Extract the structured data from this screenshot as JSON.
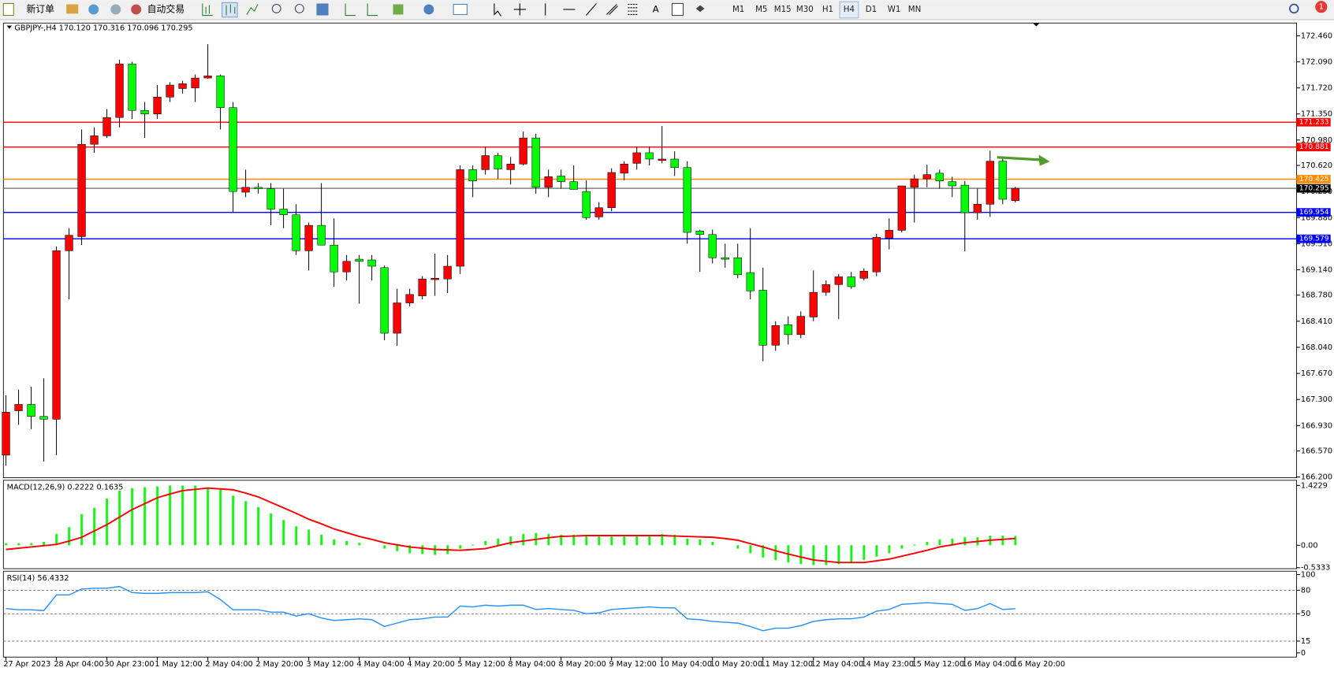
{
  "toolbar": {
    "new_order": "新订单",
    "auto_trading": "自动交易",
    "text_tool": "A",
    "timeframes": [
      "M1",
      "M5",
      "M15",
      "M30",
      "H1",
      "H4",
      "D1",
      "W1",
      "MN"
    ],
    "notifications": "1"
  },
  "chart_data": [
    {
      "type": "candlestick",
      "title": "GBPJPY-,H4  170.120 170.316 170.096 170.295",
      "categories": [
        "27 Apr 2023",
        null,
        null,
        null,
        "28 Apr 04:00",
        null,
        null,
        null,
        "30 Apr 23:00",
        null,
        null,
        null,
        "1 May 12:00",
        null,
        null,
        null,
        "2 May 04:00",
        null,
        null,
        null,
        "2 May 20:00",
        null,
        null,
        null,
        "3 May 12:00",
        null,
        null,
        null,
        "4 May 04:00",
        null,
        null,
        null,
        "4 May 20:00",
        null,
        null,
        null,
        "5 May 12:00",
        null,
        null,
        null,
        "8 May 04:00",
        null,
        null,
        null,
        "8 May 20:00",
        null,
        null,
        null,
        "9 May 12:00",
        null,
        null,
        null,
        "10 May 04:00",
        null,
        null,
        null,
        "10 May 20:00",
        null,
        null,
        null,
        "11 May 12:00",
        null,
        null,
        null,
        "12 May 04:00",
        null,
        null,
        null,
        "14 May 23:00",
        null,
        null,
        null,
        "15 May 12:00",
        null,
        null,
        null,
        "16 May 04:00",
        null,
        null,
        null,
        "16 May 20:00"
      ],
      "open": [
        166.51,
        167.14,
        167.23,
        167.06,
        167.02,
        169.41,
        169.61,
        170.92,
        171.04,
        171.3,
        172.06,
        171.4,
        171.35,
        171.59,
        171.71,
        171.72,
        171.86,
        171.89,
        171.44,
        170.24,
        170.31,
        170.29,
        170.0,
        169.92,
        169.41,
        169.77,
        169.49,
        169.11,
        169.29,
        169.28,
        169.17,
        168.24,
        168.67,
        168.77,
        169.0,
        169.01,
        169.19,
        170.56,
        170.56,
        170.76,
        170.56,
        170.64,
        171.01,
        170.31,
        170.47,
        170.39,
        170.25,
        169.89,
        170.02,
        170.51,
        170.65,
        170.8,
        170.69,
        170.71,
        170.59,
        169.69,
        169.64,
        169.31,
        169.31,
        169.1,
        168.85,
        168.07,
        168.36,
        168.22,
        168.47,
        168.82,
        168.93,
        169.04,
        169.02,
        169.11,
        169.59,
        169.7,
        170.31,
        170.43,
        170.51,
        170.39,
        170.34,
        169.95,
        170.07,
        170.68,
        170.12
      ],
      "high": [
        167.36,
        167.44,
        167.48,
        167.6,
        169.47,
        169.73,
        171.13,
        171.16,
        171.42,
        172.12,
        172.09,
        171.52,
        171.76,
        171.8,
        171.82,
        171.91,
        172.34,
        171.91,
        171.52,
        170.56,
        170.37,
        170.37,
        170.29,
        170.07,
        169.81,
        170.37,
        169.87,
        169.35,
        169.35,
        169.35,
        169.2,
        168.87,
        168.87,
        169.05,
        169.37,
        169.35,
        170.62,
        170.62,
        170.88,
        170.8,
        170.74,
        171.1,
        171.07,
        170.56,
        170.56,
        170.62,
        170.41,
        170.1,
        170.58,
        170.68,
        170.88,
        170.89,
        171.18,
        170.82,
        170.68,
        169.71,
        169.71,
        169.51,
        169.51,
        169.73,
        169.17,
        168.41,
        168.48,
        168.55,
        169.13,
        168.99,
        169.08,
        169.11,
        169.16,
        169.65,
        169.87,
        170.33,
        170.49,
        170.63,
        170.56,
        170.46,
        170.4,
        170.29,
        170.83,
        170.74,
        170.316
      ],
      "low": [
        166.36,
        166.94,
        166.88,
        166.42,
        166.51,
        168.72,
        169.49,
        170.8,
        171.01,
        171.16,
        171.28,
        171.01,
        171.28,
        171.52,
        171.64,
        171.52,
        171.85,
        171.13,
        169.95,
        170.17,
        170.22,
        169.77,
        169.73,
        169.35,
        169.13,
        169.49,
        168.9,
        168.99,
        168.66,
        168.99,
        168.14,
        168.06,
        168.62,
        168.72,
        168.77,
        168.81,
        169.08,
        170.17,
        170.49,
        170.43,
        170.35,
        170.62,
        170.22,
        170.17,
        170.29,
        170.28,
        169.85,
        169.85,
        169.97,
        170.41,
        170.56,
        170.62,
        170.65,
        170.47,
        169.51,
        169.11,
        169.23,
        169.17,
        169.02,
        168.72,
        167.84,
        167.99,
        168.08,
        168.17,
        168.41,
        168.77,
        168.44,
        168.87,
        168.99,
        169.05,
        169.43,
        169.67,
        169.81,
        170.31,
        170.29,
        170.17,
        169.4,
        169.85,
        169.89,
        170.07,
        170.096
      ],
      "close": [
        167.12,
        167.23,
        167.06,
        167.02,
        169.41,
        169.63,
        170.92,
        171.04,
        171.3,
        172.06,
        171.4,
        171.35,
        171.59,
        171.76,
        171.78,
        171.86,
        171.89,
        171.44,
        170.25,
        170.31,
        170.29,
        170.0,
        169.92,
        169.41,
        169.77,
        169.49,
        169.11,
        169.26,
        169.26,
        169.19,
        168.24,
        168.67,
        168.79,
        169.01,
        169.02,
        169.19,
        170.56,
        170.4,
        170.76,
        170.57,
        170.64,
        171.01,
        170.31,
        170.46,
        170.39,
        170.28,
        169.88,
        170.02,
        170.52,
        170.64,
        170.8,
        170.71,
        170.71,
        170.59,
        169.67,
        169.64,
        169.31,
        169.29,
        169.07,
        168.84,
        168.07,
        168.35,
        168.22,
        168.48,
        168.82,
        168.93,
        169.04,
        168.9,
        169.12,
        169.6,
        169.7,
        170.33,
        170.43,
        170.49,
        170.4,
        170.33,
        169.95,
        170.07,
        170.68,
        170.14,
        170.295
      ],
      "up_color": "#ff0000",
      "down_color": "#00ff00",
      "ylim": [
        166.19,
        172.64
      ],
      "yticks": [
        {
          "value": 172.46,
          "label": "172.460"
        },
        {
          "value": 172.09,
          "label": "172.090"
        },
        {
          "value": 171.72,
          "label": "171.720"
        },
        {
          "value": 171.35,
          "label": "171.350"
        },
        {
          "value": 170.98,
          "label": "170.980"
        },
        {
          "value": 170.62,
          "label": "170.620"
        },
        {
          "value": 170.25,
          "label": "170.250"
        },
        {
          "value": 169.88,
          "label": "169.880"
        },
        {
          "value": 169.51,
          "label": "169.510"
        },
        {
          "value": 169.14,
          "label": "169.140"
        },
        {
          "value": 168.78,
          "label": "168.780"
        },
        {
          "value": 168.41,
          "label": "168.410"
        },
        {
          "value": 168.04,
          "label": "168.040"
        },
        {
          "value": 167.67,
          "label": "167.670"
        },
        {
          "value": 167.3,
          "label": "167.300"
        },
        {
          "value": 166.93,
          "label": "166.930"
        },
        {
          "value": 166.57,
          "label": "166.570"
        },
        {
          "value": 166.2,
          "label": "166.200"
        }
      ],
      "levels": [
        {
          "value": 171.233,
          "color": "#ff0000"
        },
        {
          "value": 170.881,
          "color": "#ff0000"
        },
        {
          "value": 170.425,
          "color": "#ff8c00"
        },
        {
          "value": 170.295,
          "color": "#808080"
        },
        {
          "value": 169.954,
          "color": "#0000ff"
        },
        {
          "value": 169.579,
          "color": "#0000ff"
        }
      ],
      "grid": false
    },
    {
      "type": "macd",
      "title": "MACD(12,26,9) 0.2222 0.1635",
      "values": [
        0.05,
        0.05,
        0.05,
        0.08,
        0.27,
        0.43,
        0.74,
        0.89,
        1.11,
        1.3,
        1.36,
        1.38,
        1.4,
        1.42,
        1.42,
        1.42,
        1.38,
        1.32,
        1.18,
        1.05,
        0.91,
        0.76,
        0.6,
        0.45,
        0.37,
        0.25,
        0.14,
        0.1,
        0.06,
        0.0,
        -0.08,
        -0.14,
        -0.19,
        -0.21,
        -0.23,
        -0.21,
        -0.08,
        0.02,
        0.1,
        0.16,
        0.21,
        0.27,
        0.29,
        0.27,
        0.25,
        0.25,
        0.23,
        0.23,
        0.23,
        0.25,
        0.25,
        0.25,
        0.27,
        0.25,
        0.16,
        0.14,
        0.08,
        0.0,
        -0.08,
        -0.19,
        -0.29,
        -0.35,
        -0.41,
        -0.45,
        -0.47,
        -0.47,
        -0.45,
        -0.41,
        -0.35,
        -0.27,
        -0.19,
        -0.08,
        0.02,
        0.08,
        0.14,
        0.16,
        0.19,
        0.19,
        0.23,
        0.23,
        0.2222
      ],
      "signal": [
        -0.1,
        -0.07,
        -0.04,
        -0.01,
        0.02,
        0.1,
        0.19,
        0.34,
        0.49,
        0.67,
        0.85,
        0.99,
        1.13,
        1.22,
        1.3,
        1.33,
        1.36,
        1.34,
        1.32,
        1.24,
        1.15,
        1.02,
        0.89,
        0.76,
        0.62,
        0.51,
        0.39,
        0.3,
        0.21,
        0.14,
        0.06,
        0.01,
        -0.04,
        -0.07,
        -0.1,
        -0.11,
        -0.12,
        -0.1,
        -0.08,
        -0.01,
        0.06,
        0.1,
        0.14,
        0.18,
        0.21,
        0.22,
        0.23,
        0.23,
        0.23,
        0.23,
        0.23,
        0.23,
        0.23,
        0.22,
        0.21,
        0.2,
        0.19,
        0.16,
        0.12,
        0.04,
        -0.04,
        -0.13,
        -0.21,
        -0.28,
        -0.35,
        -0.38,
        -0.41,
        -0.41,
        -0.41,
        -0.37,
        -0.33,
        -0.26,
        -0.19,
        -0.12,
        -0.04,
        0.01,
        0.06,
        0.09,
        0.12,
        0.14,
        0.1635
      ],
      "color": "#00ff00",
      "signal_color": "#ff0000",
      "ylim": [
        -0.557,
        1.546
      ],
      "yticks": [
        1.4229,
        {
          "value": 0,
          "label": "0.00"
        },
        -0.5333
      ]
    },
    {
      "type": "line",
      "title": "RSI(14) 56.4332",
      "values": [
        56.5,
        55,
        55,
        54,
        74,
        74,
        81.5,
        82.6,
        82.6,
        84.8,
        77,
        76,
        76,
        77,
        77,
        77,
        78,
        68,
        55,
        55,
        55,
        52,
        52,
        47,
        50,
        44.6,
        41.3,
        42.4,
        43.5,
        42.4,
        33.7,
        38,
        42.4,
        43.5,
        45.7,
        45.7,
        59.8,
        58.7,
        60.9,
        59.8,
        60.9,
        60.9,
        55.4,
        56.5,
        55.4,
        54.3,
        50,
        51.1,
        55.4,
        56.5,
        57.6,
        58.7,
        57.6,
        57.6,
        43.5,
        42.4,
        40.2,
        39.1,
        38,
        33.7,
        28.3,
        31.5,
        31.5,
        34.8,
        40.2,
        42.4,
        43.5,
        43.5,
        45.7,
        53.3,
        55.4,
        62,
        63,
        64.1,
        63,
        62,
        54.3,
        56.5,
        63,
        55.4,
        56.4332
      ],
      "color": "#1e90ff",
      "ylim": [
        -5.4,
        104.3
      ],
      "yticks": [
        100,
        80,
        50,
        15,
        0
      ],
      "dashed_levels": [
        80,
        50,
        15
      ]
    }
  ]
}
